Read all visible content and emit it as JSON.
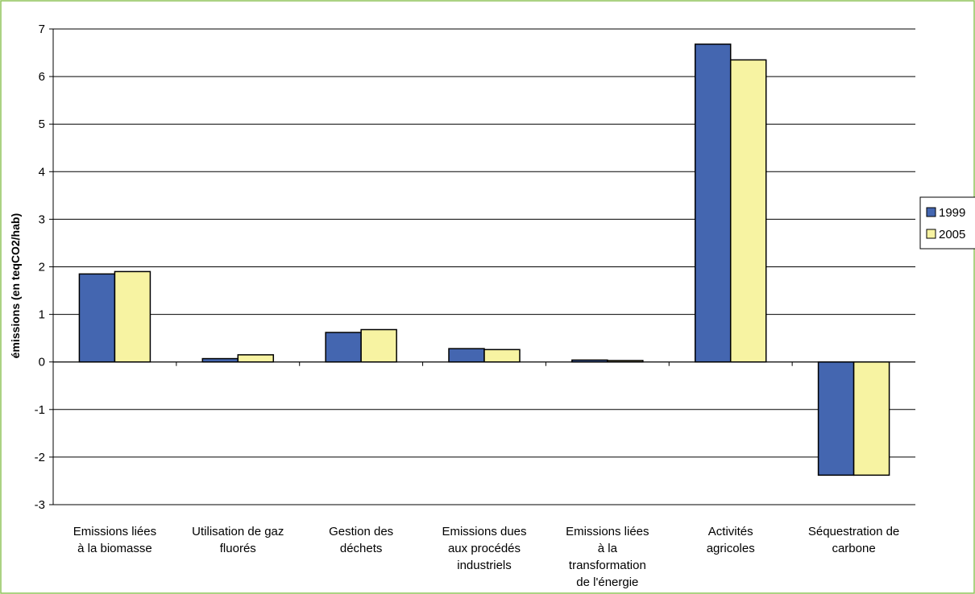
{
  "chart_data": {
    "type": "bar",
    "title": "",
    "ylabel": "émissions (en teqCO2/hab)",
    "xlabel": "",
    "ylim": [
      -3,
      7
    ],
    "yticks": [
      -3,
      -2,
      -1,
      0,
      1,
      2,
      3,
      4,
      5,
      6,
      7
    ],
    "grid": true,
    "legend_position": "right",
    "categories": [
      [
        "Emissions liées",
        "à la biomasse"
      ],
      [
        "Utilisation de gaz",
        "fluorés"
      ],
      [
        "Gestion des",
        "déchets"
      ],
      [
        "Emissions dues",
        "aux procédés",
        "industriels"
      ],
      [
        "Emissions liées",
        "à la",
        "transformation",
        "de l'énergie"
      ],
      [
        "Activités",
        "agricoles"
      ],
      [
        "Séquestration de",
        "carbone"
      ]
    ],
    "series": [
      {
        "name": "1999",
        "color": "#4466b0",
        "values": [
          1.85,
          0.07,
          0.62,
          0.28,
          0.04,
          6.68,
          -2.38
        ]
      },
      {
        "name": "2005",
        "color": "#f7f3a2",
        "values": [
          1.9,
          0.15,
          0.68,
          0.26,
          0.03,
          6.35,
          -2.38
        ]
      }
    ]
  },
  "colors": {
    "frame_border": "#8fc45a",
    "axis": "#000000",
    "gridline": "#000000"
  }
}
